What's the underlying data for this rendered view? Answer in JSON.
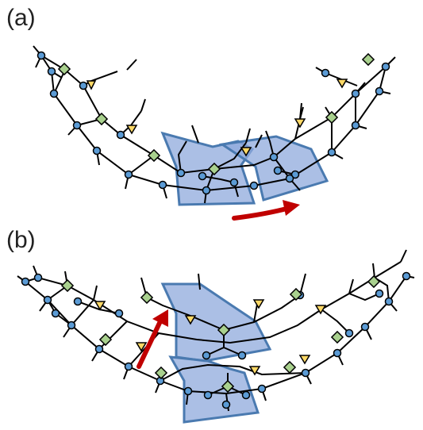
{
  "panels": [
    {
      "label": "(a)"
    },
    {
      "label": "(b)"
    }
  ],
  "colors": {
    "line": "#000000",
    "circle_node": "#5b9bd5",
    "diamond_node": "#a9d18e",
    "triangle_node": "#ffd966",
    "highlight_fill": "#8faadc",
    "highlight_stroke": "#4a7ab0",
    "arrow": "#c00000"
  }
}
